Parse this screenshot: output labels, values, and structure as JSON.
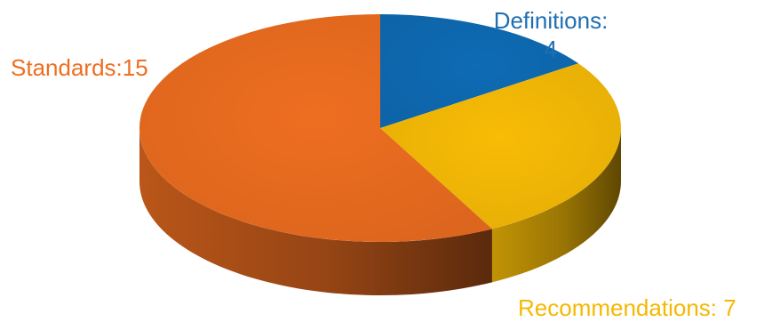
{
  "chart_data": {
    "type": "pie",
    "style": "3d",
    "title": "",
    "slices": [
      {
        "name": "Definitions",
        "value": 4,
        "color": "#0F6BB5",
        "label_line1": "Definitions:",
        "label_line2": "4",
        "label_color": "#1F6FB4"
      },
      {
        "name": "Recommendations",
        "value": 7,
        "color": "#F8BC06",
        "label": "Recommendations: 7",
        "label_color": "#F5B800"
      },
      {
        "name": "Standards",
        "value": 15,
        "color": "#EE6E20",
        "label": "Standards:15",
        "label_color": "#EE6E20"
      }
    ]
  }
}
